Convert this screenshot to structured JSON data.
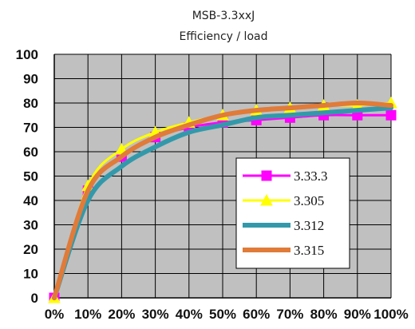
{
  "chart_data": {
    "type": "line",
    "title": "MSB-3.3xxJ",
    "subtitle": "Efficiency / load",
    "xlabel": "",
    "ylabel": "",
    "categories": [
      "0%",
      "10%",
      "20%",
      "30%",
      "40%",
      "50%",
      "60%",
      "70%",
      "80%",
      "90%",
      "100%"
    ],
    "ylim": [
      0,
      100
    ],
    "yticks": [
      "0",
      "10",
      "20",
      "30",
      "40",
      "50",
      "60",
      "70",
      "80",
      "90",
      "100"
    ],
    "grid": true,
    "legend_position": "bottom-right",
    "series": [
      {
        "name": "3.33.3",
        "color": "#ff00ff",
        "marker": "square",
        "values": [
          0,
          44,
          58,
          66,
          70,
          72,
          73,
          74,
          75,
          75,
          75
        ]
      },
      {
        "name": "3.305",
        "color": "#ffff00",
        "marker": "triangle",
        "values": [
          0,
          46,
          61,
          68,
          72,
          75,
          77,
          78,
          79,
          79,
          80
        ]
      },
      {
        "name": "3.312",
        "color": "#3399aa",
        "marker": "none",
        "values": [
          0,
          40,
          54,
          62,
          68,
          71,
          74,
          75,
          76,
          77,
          78
        ]
      },
      {
        "name": "3.315",
        "color": "#e07b39",
        "marker": "none",
        "values": [
          0,
          44,
          58,
          66,
          71,
          75,
          77,
          78,
          79,
          80,
          79
        ]
      }
    ]
  }
}
